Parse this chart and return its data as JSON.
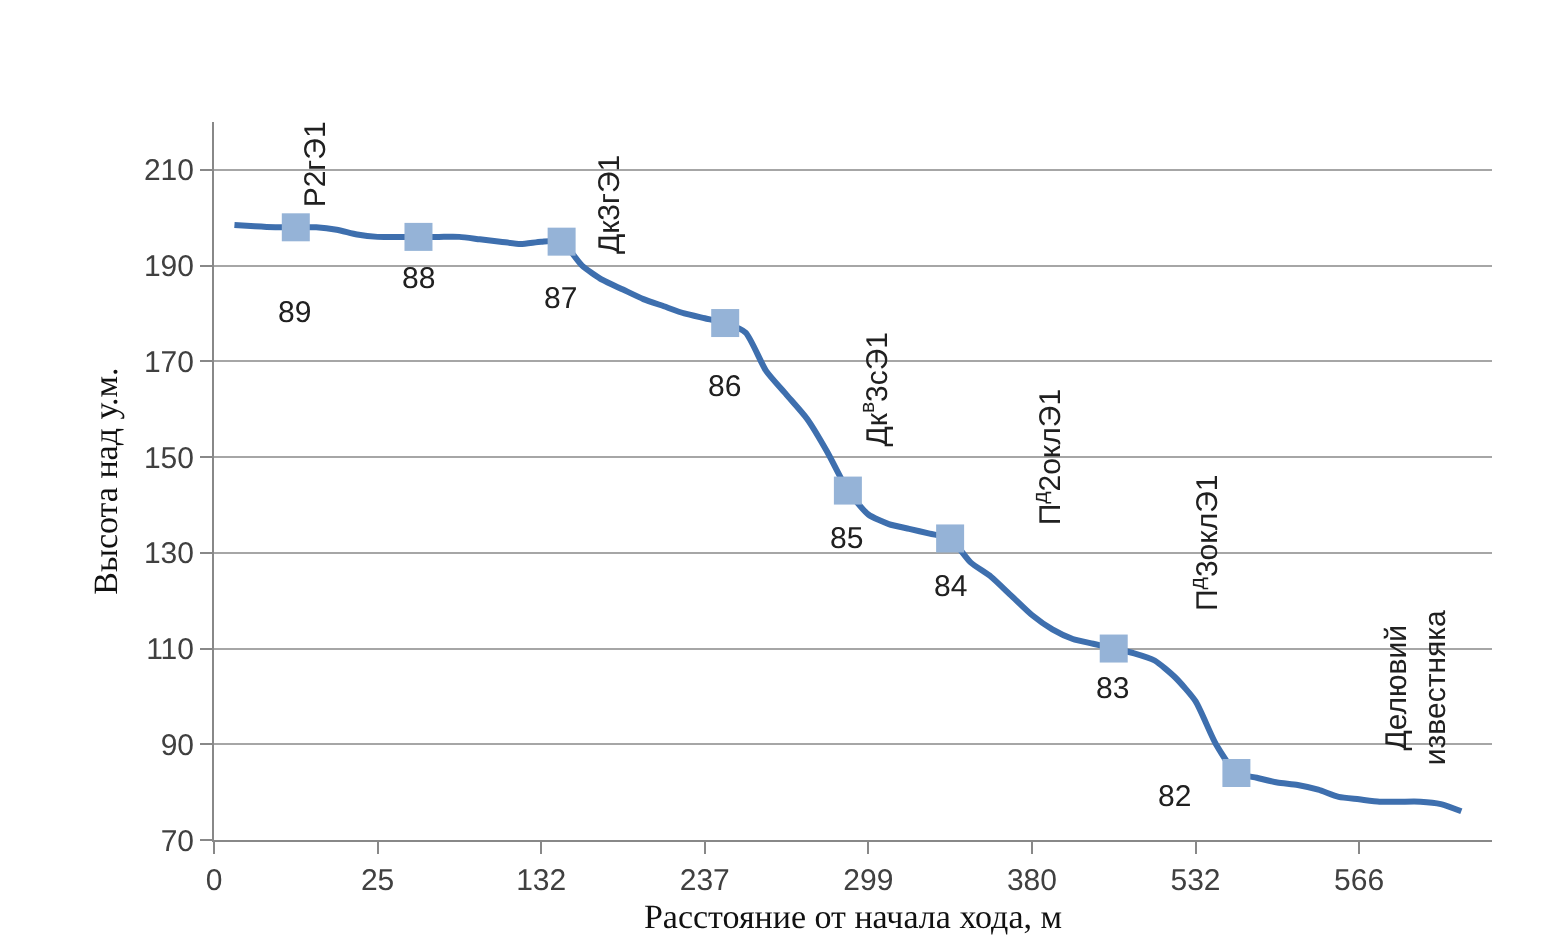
{
  "chart_data": {
    "type": "line",
    "xlabel": "Расстояние от начала хода, м",
    "ylabel": "Высота над у.м.",
    "categories": [
      "0",
      null,
      null,
      null,
      null,
      null,
      null,
      null,
      "25",
      null,
      null,
      null,
      null,
      null,
      null,
      null,
      "132",
      null,
      null,
      null,
      null,
      null,
      null,
      null,
      "237",
      null,
      null,
      null,
      null,
      null,
      null,
      null,
      "299",
      null,
      null,
      null,
      null,
      null,
      null,
      null,
      "380",
      null,
      null,
      null,
      null,
      null,
      null,
      null,
      "532",
      null,
      null,
      null,
      null,
      null,
      null,
      null,
      "566",
      null,
      null,
      null,
      null,
      null
    ],
    "series": [
      {
        "color": "#3e6fae",
        "marker": "none",
        "values": [
          null,
          198.5,
          198.2,
          198,
          198,
          198,
          197.5,
          196.5,
          196,
          196,
          196,
          196,
          196,
          195.5,
          195,
          194.5,
          195,
          195,
          190,
          187,
          185,
          183,
          181.5,
          180,
          179,
          178,
          176,
          168,
          163,
          158,
          151,
          143,
          138,
          136,
          135,
          134,
          133,
          128,
          125,
          121,
          117,
          114,
          112,
          111,
          110,
          109,
          107.5,
          104,
          99,
          90,
          84,
          83,
          82,
          81.5,
          80.5,
          79,
          78.5,
          78,
          78,
          78,
          77.5,
          76
        ]
      },
      {
        "type": "scatter",
        "color": "#95b3d7",
        "marker": "square",
        "values": [
          null,
          null,
          null,
          null,
          198,
          null,
          null,
          null,
          null,
          null,
          196,
          null,
          null,
          null,
          null,
          null,
          null,
          195,
          null,
          null,
          null,
          null,
          null,
          null,
          null,
          178,
          null,
          null,
          null,
          null,
          null,
          143,
          null,
          null,
          null,
          null,
          133,
          null,
          null,
          null,
          null,
          null,
          null,
          null,
          110,
          null,
          null,
          null,
          null,
          null,
          84,
          null,
          null,
          null,
          null,
          null,
          null,
          null,
          null,
          null,
          null,
          null
        ]
      }
    ],
    "annotations": [
      {
        "text": "89",
        "y": 198
      },
      {
        "text": "88",
        "y": 196
      },
      {
        "text": "87",
        "y": 195
      },
      {
        "text": "86",
        "y": 178
      },
      {
        "text": "85",
        "y": 143
      },
      {
        "text": "84",
        "y": 133
      },
      {
        "text": "83",
        "y": 110
      },
      "82",
      "Р2гЭ1",
      "Дк3гЭ1",
      "Дк$^{в}$3сЭ1",
      "П$^{д}$2оклЭ1",
      "П$^{д}$3оклЭ1",
      "Делювий известняка"
    ],
    "ylim": [
      70,
      220
    ],
    "yticks": [
      70,
      90,
      110,
      130,
      150,
      170,
      190,
      210
    ],
    "grid": "y"
  }
}
